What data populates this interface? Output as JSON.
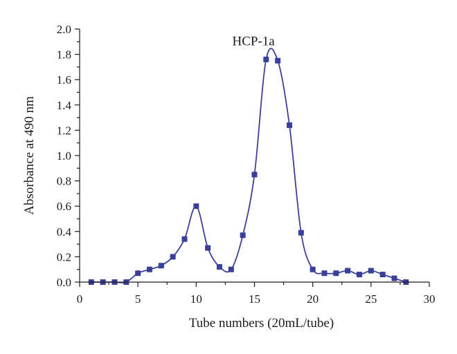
{
  "chart_data": {
    "type": "line",
    "xlabel": "Tube numbers (20mL/tube)",
    "ylabel": "Absorbance at 490 nm",
    "xlim": [
      0,
      30
    ],
    "ylim": [
      0,
      2.0
    ],
    "x_ticks": [
      "0",
      "5",
      "10",
      "15",
      "20",
      "25",
      "30"
    ],
    "y_ticks": [
      "0.0",
      "0.2",
      "0.4",
      "0.6",
      "0.8",
      "1.0",
      "1.2",
      "1.4",
      "1.6",
      "1.8",
      "2.0"
    ],
    "grid": false,
    "series_color": "#3a3f9a",
    "marker": "square",
    "x": [
      1,
      2,
      3,
      4,
      5,
      6,
      7,
      8,
      9,
      10,
      11,
      12,
      13,
      14,
      15,
      16,
      17,
      18,
      19,
      20,
      21,
      22,
      23,
      24,
      25,
      26,
      27,
      28
    ],
    "y": [
      0.0,
      0.0,
      0.0,
      0.0,
      0.07,
      0.1,
      0.13,
      0.2,
      0.34,
      0.6,
      0.27,
      0.12,
      0.1,
      0.37,
      0.85,
      1.76,
      1.75,
      1.24,
      0.39,
      0.1,
      0.07,
      0.07,
      0.09,
      0.06,
      0.09,
      0.06,
      0.03,
      0.0
    ],
    "annotations": [
      {
        "text": "HCP-1a",
        "x": 16.7,
        "y": 1.85
      }
    ]
  }
}
